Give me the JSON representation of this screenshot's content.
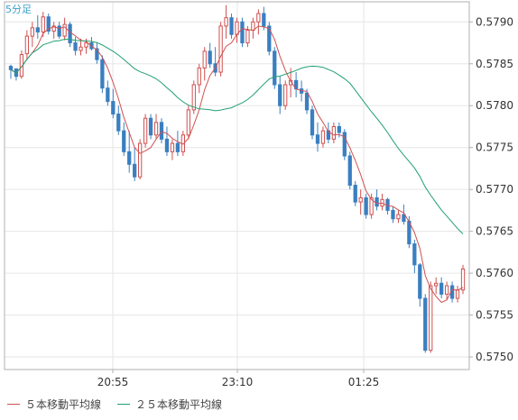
{
  "chart_data": {
    "type": "candlestick",
    "title": "5分足",
    "x_ticks": [
      "20:55",
      "23:10",
      "01:25"
    ],
    "y_ticks": [
      "0.5750",
      "0.5755",
      "0.5760",
      "0.5765",
      "0.5770",
      "0.5775",
      "0.5780",
      "0.5785",
      "0.5790"
    ],
    "ylim": [
      0.57485,
      0.57924
    ],
    "grid": true,
    "legend_position": "bottom-left",
    "candles": [
      [
        0.57847,
        0.57849,
        0.57832,
        0.57843
      ],
      [
        0.57844,
        0.57844,
        0.5783,
        0.57835
      ],
      [
        0.57835,
        0.57866,
        0.57832,
        0.57861
      ],
      [
        0.57862,
        0.5789,
        0.57855,
        0.57883
      ],
      [
        0.57883,
        0.579,
        0.5787,
        0.57893
      ],
      [
        0.57893,
        0.57908,
        0.5788,
        0.57888
      ],
      [
        0.57888,
        0.57912,
        0.57882,
        0.57906
      ],
      [
        0.57906,
        0.5791,
        0.57885,
        0.57889
      ],
      [
        0.57889,
        0.579,
        0.5788,
        0.57895
      ],
      [
        0.57895,
        0.579,
        0.5788,
        0.57883
      ],
      [
        0.57883,
        0.57905,
        0.57878,
        0.57897
      ],
      [
        0.57897,
        0.579,
        0.5787,
        0.57875
      ],
      [
        0.57875,
        0.57882,
        0.5786,
        0.57866
      ],
      [
        0.57866,
        0.5788,
        0.5786,
        0.5787
      ],
      [
        0.5787,
        0.5788,
        0.57862,
        0.57875
      ],
      [
        0.57875,
        0.57882,
        0.57866,
        0.57868
      ],
      [
        0.57868,
        0.57875,
        0.5785,
        0.57855
      ],
      [
        0.57855,
        0.5786,
        0.57815,
        0.57821
      ],
      [
        0.57821,
        0.5783,
        0.578,
        0.57805
      ],
      [
        0.57805,
        0.5782,
        0.57785,
        0.5779
      ],
      [
        0.5779,
        0.578,
        0.57765,
        0.5777
      ],
      [
        0.5777,
        0.5778,
        0.5774,
        0.57745
      ],
      [
        0.57745,
        0.5777,
        0.5772,
        0.5773
      ],
      [
        0.5773,
        0.5775,
        0.5771,
        0.57715
      ],
      [
        0.57715,
        0.5776,
        0.57712,
        0.57755
      ],
      [
        0.57755,
        0.5779,
        0.5775,
        0.57785
      ],
      [
        0.57785,
        0.5779,
        0.5776,
        0.57765
      ],
      [
        0.57765,
        0.5779,
        0.5776,
        0.5778
      ],
      [
        0.5778,
        0.57785,
        0.57755,
        0.5776
      ],
      [
        0.5776,
        0.57775,
        0.5774,
        0.57745
      ],
      [
        0.57745,
        0.5776,
        0.57735,
        0.57755
      ],
      [
        0.57755,
        0.5777,
        0.5774,
        0.57745
      ],
      [
        0.57745,
        0.5777,
        0.5774,
        0.57765
      ],
      [
        0.57765,
        0.578,
        0.5776,
        0.57795
      ],
      [
        0.57795,
        0.5783,
        0.5779,
        0.57825
      ],
      [
        0.57825,
        0.5785,
        0.57815,
        0.57845
      ],
      [
        0.57845,
        0.5787,
        0.5783,
        0.57865
      ],
      [
        0.57865,
        0.57875,
        0.57845,
        0.5785
      ],
      [
        0.5785,
        0.5787,
        0.57835,
        0.5784
      ],
      [
        0.5784,
        0.579,
        0.57835,
        0.57895
      ],
      [
        0.57895,
        0.5792,
        0.5788,
        0.57905
      ],
      [
        0.57905,
        0.5791,
        0.5788,
        0.57885
      ],
      [
        0.57885,
        0.57905,
        0.57875,
        0.579
      ],
      [
        0.579,
        0.57905,
        0.5787,
        0.57875
      ],
      [
        0.57875,
        0.57895,
        0.5787,
        0.5789
      ],
      [
        0.5789,
        0.57905,
        0.5788,
        0.579
      ],
      [
        0.579,
        0.57915,
        0.57885,
        0.5791
      ],
      [
        0.5791,
        0.57918,
        0.5789,
        0.57895
      ],
      [
        0.57895,
        0.579,
        0.5786,
        0.57865
      ],
      [
        0.57865,
        0.5787,
        0.5782,
        0.57825
      ],
      [
        0.57825,
        0.57835,
        0.5779,
        0.578
      ],
      [
        0.578,
        0.5783,
        0.57795,
        0.57825
      ],
      [
        0.57825,
        0.57845,
        0.5781,
        0.5783
      ],
      [
        0.5783,
        0.5784,
        0.5781,
        0.5782
      ],
      [
        0.5782,
        0.5783,
        0.57805,
        0.57815
      ],
      [
        0.57815,
        0.5782,
        0.5779,
        0.57795
      ],
      [
        0.57795,
        0.578,
        0.5776,
        0.57765
      ],
      [
        0.57765,
        0.5778,
        0.57745,
        0.57755
      ],
      [
        0.57755,
        0.57775,
        0.5775,
        0.5777
      ],
      [
        0.5777,
        0.5778,
        0.57755,
        0.5776
      ],
      [
        0.5776,
        0.5778,
        0.57755,
        0.57775
      ],
      [
        0.57775,
        0.5778,
        0.57762,
        0.57768
      ],
      [
        0.57768,
        0.57772,
        0.57735,
        0.5774
      ],
      [
        0.5774,
        0.57745,
        0.577,
        0.57705
      ],
      [
        0.57705,
        0.5771,
        0.5768,
        0.57685
      ],
      [
        0.57685,
        0.577,
        0.5767,
        0.5769
      ],
      [
        0.5769,
        0.57695,
        0.57665,
        0.5767
      ],
      [
        0.5767,
        0.57695,
        0.57665,
        0.5769
      ],
      [
        0.5769,
        0.577,
        0.57675,
        0.5768
      ],
      [
        0.5768,
        0.57695,
        0.57675,
        0.57688
      ],
      [
        0.57688,
        0.5769,
        0.5767,
        0.57675
      ],
      [
        0.57675,
        0.5768,
        0.5766,
        0.57665
      ],
      [
        0.57665,
        0.57675,
        0.5766,
        0.5767
      ],
      [
        0.5767,
        0.57682,
        0.57658,
        0.57662
      ],
      [
        0.57662,
        0.57668,
        0.5763,
        0.57635
      ],
      [
        0.57635,
        0.5764,
        0.576,
        0.5761
      ],
      [
        0.5761,
        0.57612,
        0.5756,
        0.5757
      ],
      [
        0.5757,
        0.57575,
        0.57505,
        0.57508
      ],
      [
        0.57508,
        0.5759,
        0.57505,
        0.57585
      ],
      [
        0.57585,
        0.57595,
        0.57575,
        0.57588
      ],
      [
        0.57588,
        0.57595,
        0.5757,
        0.57575
      ],
      [
        0.57575,
        0.5759,
        0.57568,
        0.57585
      ],
      [
        0.57585,
        0.5759,
        0.57565,
        0.5757
      ],
      [
        0.5757,
        0.57585,
        0.57565,
        0.5758
      ],
      [
        0.5758,
        0.5761,
        0.57575,
        0.57605
      ]
    ],
    "series": [
      {
        "name": "５本移動平均線",
        "color": "#d05050",
        "period": 5
      },
      {
        "name": "２５本移動平均線",
        "color": "#20a070",
        "period": 25
      }
    ],
    "bull_color": "#d05050",
    "bear_color": "#3a7fc1"
  },
  "colors": {
    "grid": "#e6e6e6",
    "axis": "#b0b0b0",
    "label": "#333333",
    "title": "#3ba0c8"
  }
}
